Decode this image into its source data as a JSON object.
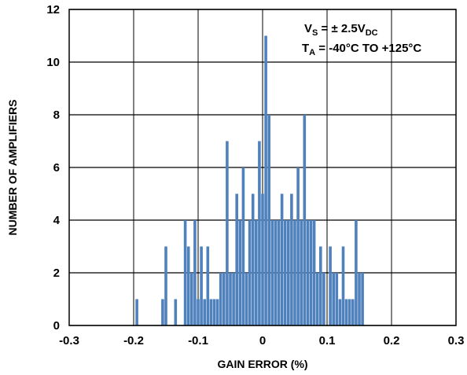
{
  "chart_data": {
    "type": "bar",
    "xlabel": "GAIN ERROR (%)",
    "ylabel": "NUMBER OF AMPLIFIERS",
    "xlim": [
      -0.3,
      0.3
    ],
    "ylim": [
      0,
      12
    ],
    "x_ticks": [
      "-0.3",
      "-0.2",
      "-0.1",
      "0",
      "0.1",
      "0.2",
      "0.3"
    ],
    "y_ticks": [
      "0",
      "2",
      "4",
      "6",
      "8",
      "10",
      "12"
    ],
    "grid": true,
    "bar_color": "#4f81bd",
    "annotations": {
      "line1": {
        "main": "V",
        "sub": "S",
        "rest": " = ± 2.5V",
        "sub2": "DC"
      },
      "line2": {
        "main": "T",
        "sub": "A",
        "rest": " = -40°C TO +125°C"
      }
    },
    "points": [
      {
        "x": -0.195,
        "y": 1
      },
      {
        "x": -0.155,
        "y": 1
      },
      {
        "x": -0.15,
        "y": 3
      },
      {
        "x": -0.135,
        "y": 1
      },
      {
        "x": -0.12,
        "y": 4
      },
      {
        "x": -0.115,
        "y": 3
      },
      {
        "x": -0.11,
        "y": 2
      },
      {
        "x": -0.105,
        "y": 4
      },
      {
        "x": -0.1,
        "y": 1
      },
      {
        "x": -0.095,
        "y": 3
      },
      {
        "x": -0.09,
        "y": 1
      },
      {
        "x": -0.085,
        "y": 3
      },
      {
        "x": -0.08,
        "y": 1
      },
      {
        "x": -0.075,
        "y": 1
      },
      {
        "x": -0.07,
        "y": 1
      },
      {
        "x": -0.065,
        "y": 2
      },
      {
        "x": -0.06,
        "y": 2
      },
      {
        "x": -0.055,
        "y": 7
      },
      {
        "x": -0.05,
        "y": 2
      },
      {
        "x": -0.045,
        "y": 2
      },
      {
        "x": -0.04,
        "y": 5
      },
      {
        "x": -0.035,
        "y": 4
      },
      {
        "x": -0.03,
        "y": 6
      },
      {
        "x": -0.025,
        "y": 2
      },
      {
        "x": -0.02,
        "y": 4
      },
      {
        "x": -0.015,
        "y": 5
      },
      {
        "x": -0.01,
        "y": 4
      },
      {
        "x": -0.005,
        "y": 7
      },
      {
        "x": 0.0,
        "y": 5
      },
      {
        "x": 0.005,
        "y": 11
      },
      {
        "x": 0.01,
        "y": 8
      },
      {
        "x": 0.015,
        "y": 4
      },
      {
        "x": 0.02,
        "y": 4
      },
      {
        "x": 0.025,
        "y": 4
      },
      {
        "x": 0.03,
        "y": 5
      },
      {
        "x": 0.035,
        "y": 4
      },
      {
        "x": 0.04,
        "y": 4
      },
      {
        "x": 0.045,
        "y": 5
      },
      {
        "x": 0.05,
        "y": 4
      },
      {
        "x": 0.055,
        "y": 6
      },
      {
        "x": 0.06,
        "y": 4
      },
      {
        "x": 0.065,
        "y": 8
      },
      {
        "x": 0.07,
        "y": 4
      },
      {
        "x": 0.075,
        "y": 4
      },
      {
        "x": 0.08,
        "y": 4
      },
      {
        "x": 0.085,
        "y": 2
      },
      {
        "x": 0.09,
        "y": 3
      },
      {
        "x": 0.095,
        "y": 2
      },
      {
        "x": 0.105,
        "y": 3
      },
      {
        "x": 0.11,
        "y": 2
      },
      {
        "x": 0.115,
        "y": 2
      },
      {
        "x": 0.12,
        "y": 1
      },
      {
        "x": 0.125,
        "y": 3
      },
      {
        "x": 0.13,
        "y": 1
      },
      {
        "x": 0.135,
        "y": 1
      },
      {
        "x": 0.14,
        "y": 1
      },
      {
        "x": 0.145,
        "y": 4
      },
      {
        "x": 0.15,
        "y": 2
      },
      {
        "x": 0.155,
        "y": 2
      }
    ]
  }
}
